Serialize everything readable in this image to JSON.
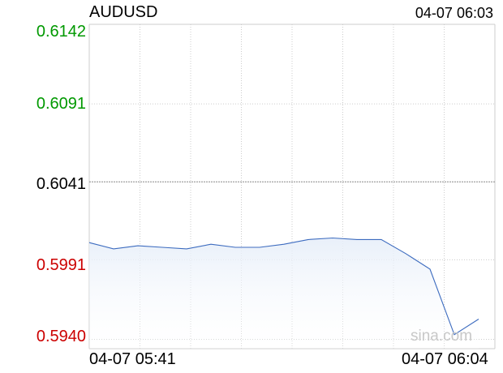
{
  "header": {
    "symbol": "AUDUSD",
    "timestamp": "04-07 06:03"
  },
  "watermark": "sina.com",
  "colors": {
    "up": "#009900",
    "neutral": "#000000",
    "down": "#cc0000",
    "line": "#3c6bbf",
    "fill_top": "#e6eef9",
    "grid": "#cccccc"
  },
  "chart_data": {
    "type": "area",
    "title": "AUDUSD",
    "xlabel": "",
    "ylabel": "",
    "x_start_label": "04-07 05:41",
    "x_end_label": "04-07 06:04",
    "y_tick_labels": [
      "0.6142",
      "0.6091",
      "0.6041",
      "0.5991",
      "0.5940"
    ],
    "ylim": [
      0.5934,
      0.6142
    ],
    "reference_value": 0.6041,
    "grid": true,
    "values": [
      0.6002,
      0.5998,
      0.6,
      0.5999,
      0.5998,
      0.6001,
      0.5999,
      0.5999,
      0.6001,
      0.6004,
      0.6005,
      0.6004,
      0.6004,
      0.5995,
      0.5985,
      0.5943,
      0.5953
    ]
  }
}
